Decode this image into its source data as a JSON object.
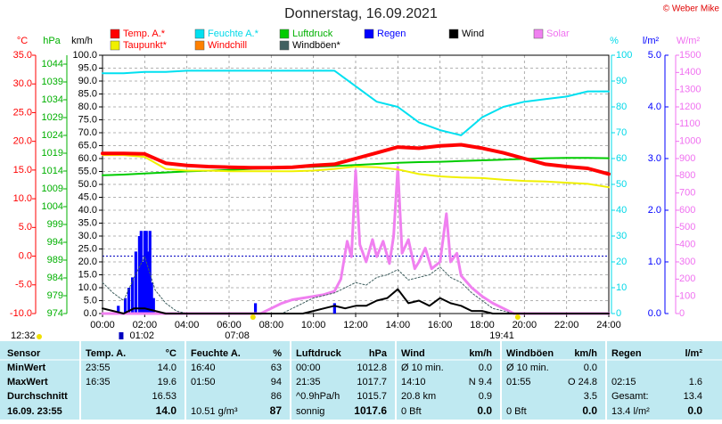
{
  "chart_data": {
    "type": "line",
    "title": "Donnerstag, 16.09.2021",
    "copyright": "© Weber Mike",
    "updated": "12:32",
    "xlim": [
      0,
      24
    ],
    "xticks": [
      {
        "value": 0,
        "label": "00:00"
      },
      {
        "value": 2,
        "label": "02:00"
      },
      {
        "value": 4,
        "label": "04:00"
      },
      {
        "value": 6,
        "label": "06:00"
      },
      {
        "value": 8,
        "label": "08:00"
      },
      {
        "value": 10,
        "label": "10:00"
      },
      {
        "value": 12,
        "label": "12:00"
      },
      {
        "value": 14,
        "label": "14:00"
      },
      {
        "value": 16,
        "label": "16:00"
      },
      {
        "value": 18,
        "label": "18:00"
      },
      {
        "value": 20,
        "label": "20:00"
      },
      {
        "value": 22,
        "label": "22:00"
      },
      {
        "value": 24,
        "label": "24:00"
      }
    ],
    "x": [
      0,
      1,
      2,
      3,
      4,
      5,
      6,
      7,
      8,
      9,
      10,
      11,
      12,
      13,
      14,
      15,
      16,
      17,
      18,
      19,
      20,
      21,
      22,
      23,
      24
    ],
    "grid": true,
    "grid_axis": 2,
    "axes": [
      {
        "label": "°C",
        "color": "#ff0000",
        "lim": [
          -10,
          35
        ],
        "ticks": [
          {
            "value": 35,
            "label": "35.0"
          },
          {
            "value": 30,
            "label": "30.0"
          },
          {
            "value": 25,
            "label": "25.0"
          },
          {
            "value": 20,
            "label": "20.0"
          },
          {
            "value": 15,
            "label": "15.0"
          },
          {
            "value": 10,
            "label": "10.0"
          },
          {
            "value": 5,
            "label": "5.0"
          },
          {
            "value": 0,
            "label": "0.0"
          },
          {
            "value": -5,
            "label": "-5.0"
          },
          {
            "value": -10,
            "label": "-10.0"
          }
        ]
      },
      {
        "label": "hPa",
        "color": "#00b000",
        "lim": [
          974,
          1046.5
        ],
        "ticks": [
          1044,
          1039,
          1034,
          1029,
          1024,
          1019,
          1014,
          1009,
          1004,
          999,
          994,
          989,
          984,
          979,
          974
        ]
      },
      {
        "label": "km/h",
        "color": "#000000",
        "lim": [
          0,
          100
        ],
        "ticks": [
          {
            "value": 100,
            "label": "100.0"
          },
          {
            "value": 95,
            "label": "95.0"
          },
          {
            "value": 90,
            "label": "90.0"
          },
          {
            "value": 85,
            "label": "85.0"
          },
          {
            "value": 80,
            "label": "80.0"
          },
          {
            "value": 75,
            "label": "75.0"
          },
          {
            "value": 70,
            "label": "70.0"
          },
          {
            "value": 65,
            "label": "65.0"
          },
          {
            "value": 60,
            "label": "60.0"
          },
          {
            "value": 55,
            "label": "55.0"
          },
          {
            "value": 50,
            "label": "50.0"
          },
          {
            "value": 45,
            "label": "45.0"
          },
          {
            "value": 40,
            "label": "40.0"
          },
          {
            "value": 35,
            "label": "35.0"
          },
          {
            "value": 30,
            "label": "30.0"
          },
          {
            "value": 25,
            "label": "25.0"
          },
          {
            "value": 20,
            "label": "20.0"
          },
          {
            "value": 15,
            "label": "15.0"
          },
          {
            "value": 10,
            "label": "10.0"
          },
          {
            "value": 5,
            "label": "5.0"
          },
          {
            "value": 0,
            "label": "0.0"
          }
        ]
      },
      {
        "label": "%",
        "color": "#00d8e8",
        "lim": [
          0,
          100
        ],
        "ticks": [
          100,
          90,
          80,
          70,
          60,
          50,
          40,
          30,
          20,
          10,
          0
        ]
      },
      {
        "label": "l/m²",
        "color": "#0000ff",
        "lim": [
          0,
          5
        ],
        "ticks": [
          {
            "value": 5,
            "label": "5.0"
          },
          {
            "value": 4,
            "label": "4.0"
          },
          {
            "value": 3,
            "label": "3.0"
          },
          {
            "value": 2,
            "label": "2.0"
          },
          {
            "value": 1,
            "label": "1.0"
          },
          {
            "value": 0,
            "label": "0.0"
          }
        ]
      },
      {
        "label": "W/m²",
        "color": "#f070f0",
        "lim": [
          0,
          1500
        ],
        "ticks": [
          1500,
          1400,
          1300,
          1200,
          1100,
          1000,
          900,
          800,
          700,
          600,
          500,
          400,
          300,
          200,
          100,
          0
        ]
      }
    ],
    "series": [
      {
        "name": "Temp. A.*",
        "color": "#ff0000",
        "label_color": "#ff0000",
        "axis": 0,
        "values": [
          17.9,
          17.9,
          17.8,
          16.2,
          15.8,
          15.6,
          15.5,
          15.4,
          15.4,
          15.5,
          15.8,
          16.0,
          17.0,
          18.0,
          19.0,
          18.8,
          19.2,
          19.4,
          18.8,
          18.0,
          17.0,
          16.0,
          15.6,
          15.3,
          14.3
        ]
      },
      {
        "name": "Feuchte A.*",
        "color": "#00e0f0",
        "label_color": "#00d8e8",
        "axis": 3,
        "values": [
          93,
          93,
          93.5,
          93.5,
          94,
          94,
          94,
          94,
          94,
          94,
          94,
          94,
          88,
          82,
          80,
          74,
          71,
          69,
          76,
          80,
          82,
          83,
          84,
          86,
          86
        ]
      },
      {
        "name": "Luftdruck",
        "color": "#00cc00",
        "label_color": "#00b000",
        "axis": 1,
        "values": [
          1012.8,
          1013.0,
          1013.3,
          1013.6,
          1013.9,
          1014.1,
          1014.3,
          1014.6,
          1014.8,
          1015.0,
          1015.2,
          1015.4,
          1015.7,
          1016.0,
          1016.3,
          1016.5,
          1016.6,
          1016.8,
          1017.0,
          1017.2,
          1017.4,
          1017.6,
          1017.7,
          1017.7,
          1017.6
        ]
      },
      {
        "name": "Regen",
        "color": "#0000ff",
        "label_color": "#0000ff",
        "axis": 4,
        "kind": "bar",
        "x": [
          0.75,
          1.08,
          1.25,
          1.42,
          1.58,
          1.75,
          1.83,
          1.92,
          2.0,
          2.08,
          2.17,
          2.25,
          2.33,
          2.42,
          7.25,
          11.0
        ],
        "values": [
          0.15,
          0.3,
          0.5,
          0.7,
          1.2,
          1.5,
          1.6,
          1.0,
          1.6,
          1.6,
          1.2,
          1.6,
          0.6,
          0.3,
          0.2,
          0.2
        ]
      },
      {
        "name": "Wind",
        "color": "#000000",
        "label_color": "#000000",
        "axis": 2,
        "x": [
          0,
          0.5,
          1,
          1.5,
          2,
          2.5,
          3,
          3.5,
          4,
          4.5,
          5,
          5.5,
          6,
          6.5,
          7,
          7.5,
          8,
          8.5,
          9,
          9.5,
          10,
          10.5,
          11,
          11.5,
          12,
          12.5,
          13,
          13.5,
          14,
          14.5,
          15,
          15.5,
          16,
          16.5,
          17,
          17.5,
          18,
          18.5,
          19,
          19.5,
          20,
          20.5,
          21,
          21.5,
          22,
          22.5,
          23,
          23.5,
          24
        ],
        "values": [
          2,
          1,
          0,
          2,
          2,
          1,
          0,
          0,
          0,
          0,
          0,
          0,
          0,
          0,
          0,
          0,
          0,
          0,
          0,
          0,
          1,
          2,
          3,
          2,
          3,
          3,
          5,
          6,
          9.4,
          4,
          5,
          3,
          6,
          4,
          3,
          1,
          1,
          0,
          0,
          0,
          0,
          0,
          0,
          0,
          0,
          0,
          0,
          0,
          0
        ]
      },
      {
        "name": "Solar",
        "color": "#f080f0",
        "label_color": "#f070f0",
        "axis": 5,
        "x": [
          0,
          7.5,
          8,
          8.5,
          9,
          9.5,
          10,
          10.5,
          11,
          11.3,
          11.6,
          11.8,
          12,
          12.2,
          12.5,
          12.8,
          13,
          13.3,
          13.6,
          13.8,
          14,
          14.2,
          14.5,
          14.8,
          15,
          15.3,
          15.6,
          16,
          16.3,
          16.5,
          16.8,
          17,
          17.5,
          18,
          18.5,
          19,
          19.5,
          24
        ],
        "values": [
          0,
          0,
          30,
          60,
          80,
          90,
          100,
          110,
          130,
          200,
          420,
          330,
          830,
          400,
          300,
          430,
          330,
          420,
          290,
          450,
          850,
          350,
          430,
          260,
          300,
          380,
          260,
          300,
          580,
          300,
          350,
          220,
          150,
          100,
          60,
          30,
          0,
          0
        ]
      },
      {
        "name": "Taupunkt*",
        "color": "#f0f000",
        "label_color": "#ff0000",
        "axis": 0,
        "values": [
          17.6,
          17.6,
          17.3,
          15.2,
          14.9,
          14.9,
          14.8,
          14.8,
          14.8,
          14.8,
          14.9,
          15.2,
          15.6,
          15.5,
          15.1,
          14.3,
          13.9,
          13.7,
          13.6,
          13.3,
          13.1,
          13.0,
          12.8,
          12.6,
          12.0
        ]
      },
      {
        "name": "Windchill",
        "color": "#ff8000",
        "label_color": "#ff0000",
        "axis": 0,
        "values": [
          17.9,
          17.9,
          17.8,
          16.2,
          15.8,
          15.6,
          15.5,
          15.4,
          15.4,
          15.5,
          15.8,
          16.0,
          17.0,
          18.0,
          19.0,
          18.8,
          19.2,
          19.4,
          18.8,
          18.0,
          17.0,
          16.0,
          15.6,
          15.3,
          14.3
        ]
      },
      {
        "name": "Windböen*",
        "color": "#406060",
        "label_color": "#000000",
        "axis": 2,
        "dash": true,
        "x": [
          0,
          0.5,
          1,
          1.5,
          2,
          2.5,
          3,
          3.5,
          4,
          4.5,
          5,
          5.5,
          6,
          6.5,
          7,
          7.5,
          8,
          8.5,
          9,
          9.5,
          10,
          10.5,
          11,
          11.5,
          12,
          12.5,
          13,
          13.5,
          14,
          14.5,
          15,
          15.5,
          16,
          16.5,
          17,
          17.5,
          18,
          18.5,
          19,
          19.5,
          20,
          20.5,
          21,
          21.5,
          22,
          22.5,
          23,
          23.5,
          24
        ],
        "values": [
          12,
          8,
          5,
          14,
          22,
          9,
          4,
          1,
          0,
          0,
          0,
          0,
          0,
          0,
          0,
          0,
          0,
          0,
          2,
          4,
          6,
          7,
          8,
          10,
          12,
          11,
          14,
          15,
          17,
          13,
          14,
          15,
          18,
          14,
          12,
          8,
          5,
          2,
          1,
          0,
          0,
          0,
          0,
          0,
          0,
          0,
          0,
          0,
          0
        ]
      }
    ],
    "annotations": [
      {
        "label": "01:02"
      },
      {
        "label": "07:08"
      },
      {
        "label": "19:41"
      }
    ]
  },
  "table": {
    "header": [
      "Sensor",
      "Temp. A.",
      "°C",
      "Feuchte A.",
      "%",
      "Luftdruck",
      "hPa",
      "Wind",
      "km/h",
      "Windböen",
      "km/h",
      "Regen",
      "l/m²"
    ],
    "rows": [
      [
        "MinWert",
        "23:55",
        "14.0",
        "16:40",
        "63",
        "00:00",
        "1012.8",
        "Ø 10 min.",
        "0.0",
        "Ø 10 min.",
        "0.0",
        null,
        null
      ],
      [
        "MaxWert",
        "16:35",
        "19.6",
        "01:50",
        "94",
        "21:35",
        "1017.7",
        "14:10",
        "N 9.4",
        "01:55",
        "O 24.8",
        "02:15",
        "1.6"
      ],
      [
        "Durchschnitt",
        null,
        "16.53",
        null,
        "86",
        "^0.9hPa/h",
        "1015.7",
        "20.8 km",
        "0.9",
        null,
        "3.5",
        "Gesamt:",
        "13.4"
      ],
      [
        "16.09. 23:55",
        null,
        "14.0",
        "10.51 g/m³",
        "87",
        "sonnig",
        "1017.6",
        "0 Bft",
        "0.0",
        "0 Bft",
        "0.0",
        "13.4 l/m²",
        "0.0"
      ]
    ]
  }
}
